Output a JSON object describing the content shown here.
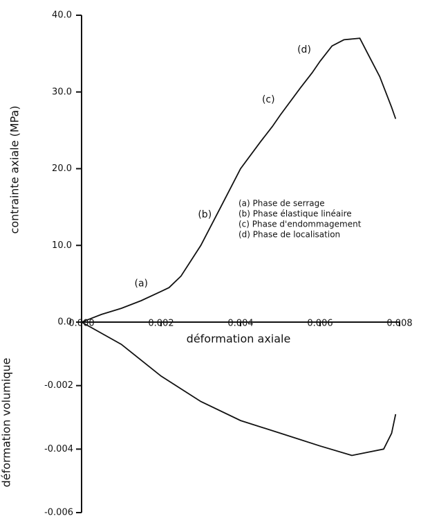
{
  "chart_data": {
    "type": "line",
    "xlabel": "déformation axiale",
    "ylabel": "contrainte axiale (MPa)",
    "y2label": "déformation volumique",
    "xlim": [
      0,
      0.008
    ],
    "xticks": [
      {
        "value": 0,
        "label": "0.000"
      },
      0.002,
      0.004,
      0.006,
      0.008
    ],
    "ylim": [
      0,
      40
    ],
    "yticks": [
      {
        "value": 0,
        "label": "0.0"
      },
      {
        "value": 10,
        "label": "10.0"
      },
      {
        "value": 20,
        "label": "20.0"
      },
      {
        "value": 30,
        "label": "30.0"
      },
      {
        "value": 40,
        "label": "40.0"
      }
    ],
    "y2lim": [
      -0.006,
      0
    ],
    "y2ticks": [
      -0.006,
      -0.004,
      -0.002
    ],
    "series": [
      {
        "name": "contrainte axiale",
        "color": "#111111",
        "axis": "y",
        "x": [
          0,
          0.0005,
          0.001,
          0.0015,
          0.002,
          0.0022,
          0.0025,
          0.003,
          0.0035,
          0.004,
          0.0045,
          0.0048,
          0.005,
          0.0055,
          0.0058,
          0.006,
          0.0063,
          0.0066,
          0.007,
          0.0072,
          0.0075,
          0.0078,
          0.0079
        ],
        "values": [
          0,
          1,
          1.8,
          2.8,
          4,
          4.5,
          6,
          10,
          15,
          20,
          23.5,
          25.5,
          27,
          30.5,
          32.5,
          34,
          36,
          36.8,
          37,
          35,
          32,
          28,
          26.5
        ]
      },
      {
        "name": "déformation volumique",
        "color": "#111111",
        "axis": "y2",
        "x": [
          0,
          0.001,
          0.002,
          0.003,
          0.004,
          0.005,
          0.006,
          0.0068,
          0.0072,
          0.0076,
          0.0078,
          0.0079
        ],
        "values": [
          0,
          -0.0007,
          -0.0017,
          -0.0025,
          -0.0031,
          -0.0035,
          -0.0039,
          -0.0042,
          -0.0041,
          -0.004,
          -0.0035,
          -0.0029
        ]
      }
    ],
    "annotations": [
      {
        "text": "(a)",
        "x": 0.0015,
        "y": 5
      },
      {
        "text": "(b)",
        "x": 0.0031,
        "y": 14
      },
      {
        "text": "(c)",
        "x": 0.0047,
        "y": 29
      },
      {
        "text": "(d)",
        "x": 0.0056,
        "y": 35.5
      }
    ],
    "legend": [
      "(a)  Phase de serrage",
      "(b)  Phase élastique linéaire",
      "(c)  Phase d'endommagement",
      "(d)  Phase de localisation"
    ]
  }
}
